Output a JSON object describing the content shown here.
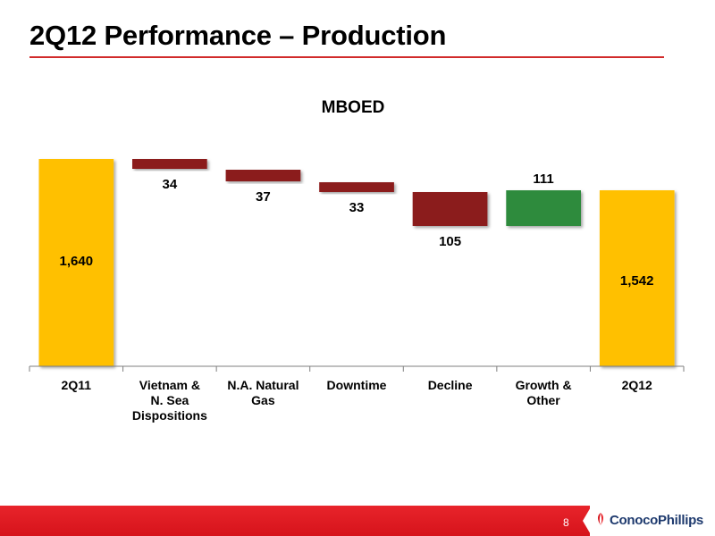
{
  "slide": {
    "title": "2Q12 Performance – Production",
    "page_number": "8",
    "brand": "ConocoPhillips"
  },
  "colors": {
    "accent_red": "#d12b2b",
    "total_bar": "#ffc000",
    "decrease_bar": "#8b1a1a",
    "increase_bar": "#2e8b3e"
  },
  "chart_data": {
    "type": "bar",
    "subtype": "waterfall",
    "title": "MBOED",
    "categories": [
      "2Q11",
      "Vietnam & N. Sea Dispositions",
      "N.A. Natural Gas",
      "Downtime",
      "Decline",
      "Growth & Other",
      "2Q12"
    ],
    "category_lines": [
      [
        "2Q11"
      ],
      [
        "Vietnam &",
        "N. Sea",
        "Dispositions"
      ],
      [
        "N.A. Natural",
        "Gas"
      ],
      [
        "Downtime"
      ],
      [
        "Decline"
      ],
      [
        "Growth &",
        "Other"
      ],
      [
        "2Q12"
      ]
    ],
    "values": [
      1640,
      -34,
      -37,
      -33,
      -105,
      111,
      1542
    ],
    "labels": [
      "1,640",
      "34",
      "37",
      "33",
      "105",
      "111",
      "1,542"
    ],
    "kinds": [
      "total",
      "decrease",
      "decrease",
      "decrease",
      "decrease",
      "increase",
      "total"
    ],
    "xlabel": "",
    "ylabel": "",
    "grid": false,
    "legend": "none"
  }
}
